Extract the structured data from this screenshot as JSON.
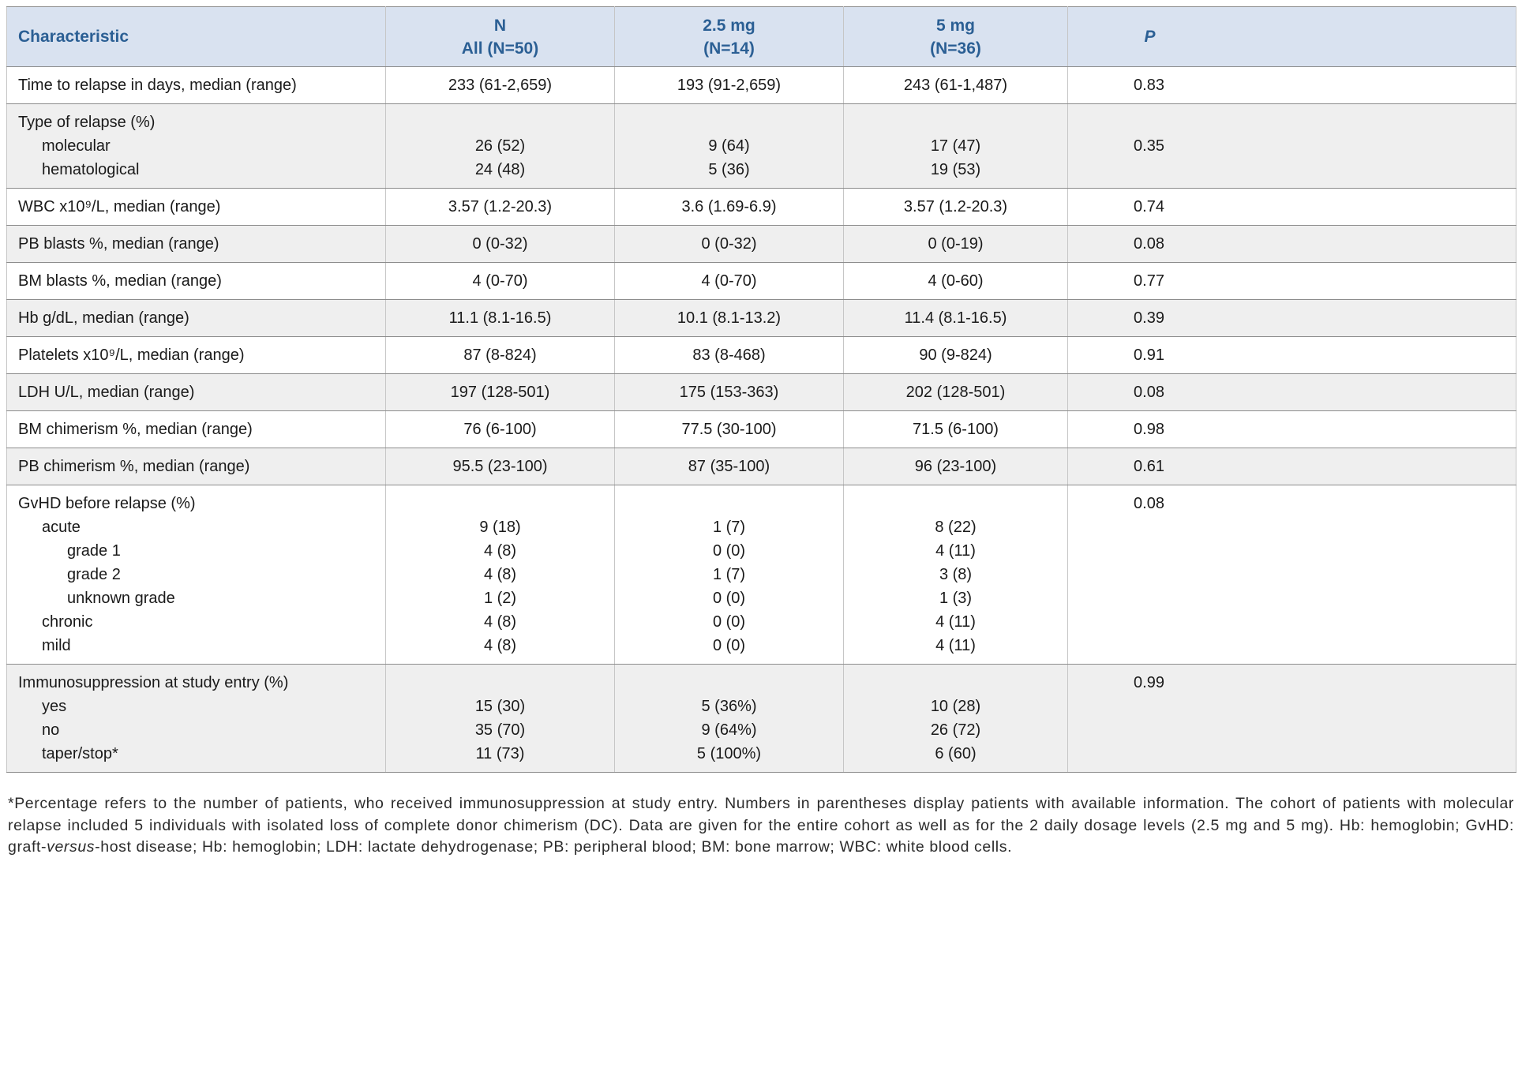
{
  "theme": {
    "header_bg": "#d9e2f0",
    "header_text": "#2b5f94",
    "shaded_row_bg": "#efefef",
    "border_color": "#8c8c8c",
    "border_color_vertical": "#c6c6c6",
    "body_text": "#1a1a1a"
  },
  "table": {
    "header": {
      "characteristic": "Characteristic",
      "all_line1": "N",
      "all_line2": "All (N=50)",
      "d25_line1": "2.5 mg",
      "d25_line2": "(N=14)",
      "d5_line1": "5 mg",
      "d5_line2": "(N=36)",
      "p": "P"
    },
    "rows": [
      {
        "shaded": false,
        "p": "0.83",
        "p_valign": "middle",
        "lines": [
          {
            "label": "Time to relapse in days, median (range)",
            "indent": 0,
            "all": "233 (61-2,659)",
            "d25": "193 (91-2,659)",
            "d5": "243 (61-1,487)"
          }
        ]
      },
      {
        "shaded": true,
        "p": "0.35",
        "p_valign": "middle",
        "lines": [
          {
            "label": "Type of relapse (%)",
            "indent": 0,
            "all": "",
            "d25": "",
            "d5": ""
          },
          {
            "label": "molecular",
            "indent": 1,
            "all": "26 (52)",
            "d25": "9 (64)",
            "d5": "17 (47)"
          },
          {
            "label": "hematological",
            "indent": 1,
            "all": "24 (48)",
            "d25": "5 (36)",
            "d5": "19 (53)"
          }
        ]
      },
      {
        "shaded": false,
        "p": "0.74",
        "p_valign": "middle",
        "lines": [
          {
            "label": "WBC x10⁹/L, median (range)",
            "indent": 0,
            "all": "3.57 (1.2-20.3)",
            "d25": "3.6 (1.69-6.9)",
            "d5": "3.57 (1.2-20.3)"
          }
        ]
      },
      {
        "shaded": true,
        "p": "0.08",
        "p_valign": "middle",
        "lines": [
          {
            "label": "PB blasts %, median (range)",
            "indent": 0,
            "all": "0 (0-32)",
            "d25": "0 (0-32)",
            "d5": "0 (0-19)"
          }
        ]
      },
      {
        "shaded": false,
        "p": "0.77",
        "p_valign": "middle",
        "lines": [
          {
            "label": "BM blasts %, median (range)",
            "indent": 0,
            "all": "4 (0-70)",
            "d25": "4 (0-70)",
            "d5": "4 (0-60)"
          }
        ]
      },
      {
        "shaded": true,
        "p": "0.39",
        "p_valign": "middle",
        "lines": [
          {
            "label": "Hb g/dL, median (range)",
            "indent": 0,
            "all": "11.1 (8.1-16.5)",
            "d25": "10.1 (8.1-13.2)",
            "d5": "11.4 (8.1-16.5)"
          }
        ]
      },
      {
        "shaded": false,
        "p": "0.91",
        "p_valign": "middle",
        "lines": [
          {
            "label": "Platelets x10⁹/L, median (range)",
            "indent": 0,
            "all": "87 (8-824)",
            "d25": "83 (8-468)",
            "d5": "90 (9-824)"
          }
        ]
      },
      {
        "shaded": true,
        "p": "0.08",
        "p_valign": "middle",
        "lines": [
          {
            "label": "LDH U/L, median (range)",
            "indent": 0,
            "all": "197 (128-501)",
            "d25": "175 (153-363)",
            "d5": "202 (128-501)"
          }
        ]
      },
      {
        "shaded": false,
        "p": "0.98",
        "p_valign": "middle",
        "lines": [
          {
            "label": "BM chimerism %, median (range)",
            "indent": 0,
            "all": "76 (6-100)",
            "d25": "77.5 (30-100)",
            "d5": "71.5 (6-100)"
          }
        ]
      },
      {
        "shaded": true,
        "p": "0.61",
        "p_valign": "middle",
        "lines": [
          {
            "label": "PB chimerism %, median (range)",
            "indent": 0,
            "all": "95.5 (23-100)",
            "d25": "87 (35-100)",
            "d5": "96 (23-100)"
          }
        ]
      },
      {
        "shaded": false,
        "p": "0.08",
        "p_valign": "top",
        "lines": [
          {
            "label": "GvHD before relapse (%)",
            "indent": 0,
            "all": "",
            "d25": "",
            "d5": ""
          },
          {
            "label": "acute",
            "indent": 1,
            "all": "9 (18)",
            "d25": "1 (7)",
            "d5": "8 (22)"
          },
          {
            "label": "grade 1",
            "indent": 2,
            "all": "4 (8)",
            "d25": "0 (0)",
            "d5": "4 (11)"
          },
          {
            "label": "grade 2",
            "indent": 2,
            "all": "4 (8)",
            "d25": "1 (7)",
            "d5": "3 (8)"
          },
          {
            "label": "unknown grade",
            "indent": 2,
            "all": "1 (2)",
            "d25": "0 (0)",
            "d5": "1 (3)"
          },
          {
            "label": "chronic",
            "indent": 1,
            "all": "4 (8)",
            "d25": "0 (0)",
            "d5": "4 (11)"
          },
          {
            "label": "mild",
            "indent": 1,
            "all": "4 (8)",
            "d25": "0 (0)",
            "d5": "4 (11)"
          }
        ]
      },
      {
        "shaded": true,
        "p": "0.99",
        "p_valign": "top",
        "lines": [
          {
            "label": "Immunosuppression at study entry (%)",
            "indent": 0,
            "all": "",
            "d25": "",
            "d5": ""
          },
          {
            "label": "yes",
            "indent": 1,
            "all": "15 (30)",
            "d25": "5 (36%)",
            "d5": "10 (28)"
          },
          {
            "label": "no",
            "indent": 1,
            "all": "35 (70)",
            "d25": "9 (64%)",
            "d5": "26 (72)"
          },
          {
            "label": "taper/stop*",
            "indent": 1,
            "all": "11 (73)",
            "d25": "5 (100%)",
            "d5": "6 (60)"
          }
        ]
      }
    ]
  },
  "footnote": {
    "part1": "*Percentage refers to the number of patients, who received immunosuppression at study entry. Numbers in parentheses display patients with available information. The cohort of patients with molecular relapse included 5 individuals with isolated loss of complete donor chimerism (DC). Data are given for the entire cohort as well as for the 2 daily dosage levels (2.5 mg and 5 mg). Hb: hemoglobin; GvHD: graft-",
    "italic": "versus",
    "part2": "-host disease; Hb: hemoglobin; LDH: lactate dehydrogenase; PB: peripheral blood; BM: bone marrow; WBC: white blood cells."
  }
}
